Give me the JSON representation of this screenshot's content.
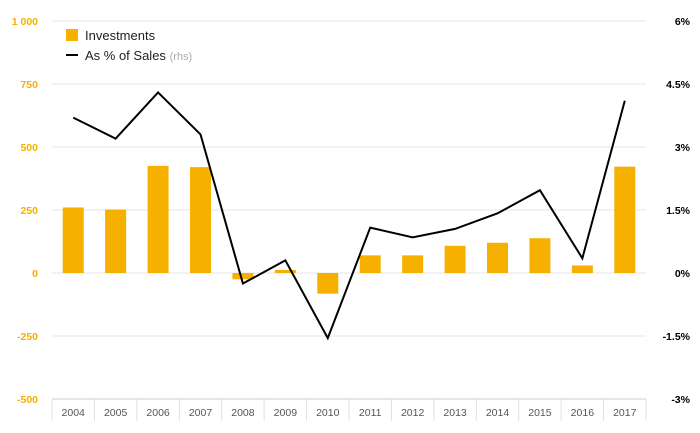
{
  "chart_data": {
    "type": "bar",
    "categories": [
      "2004",
      "2005",
      "2006",
      "2007",
      "2008",
      "2009",
      "2010",
      "2011",
      "2012",
      "2013",
      "2014",
      "2015",
      "2016",
      "2017"
    ],
    "series": [
      {
        "name": "Investments",
        "type": "bar",
        "axis": "left",
        "color": "#f5b000",
        "values": [
          260,
          252,
          425,
          420,
          -25,
          12,
          -82,
          70,
          70,
          108,
          120,
          138,
          30,
          422
        ]
      },
      {
        "name": "As % of Sales",
        "name_suffix": "(rhs)",
        "type": "line",
        "axis": "right",
        "color": "#000000",
        "values": [
          3.7,
          3.2,
          4.3,
          3.3,
          -0.25,
          0.3,
          -1.55,
          1.08,
          0.85,
          1.05,
          1.42,
          1.97,
          0.35,
          4.1
        ]
      }
    ],
    "y_left": {
      "range": [
        -500,
        1000
      ],
      "ticks": [
        -500,
        -250,
        0,
        250,
        500,
        750,
        1000
      ],
      "tick_labels": [
        "-500",
        "-250",
        "0",
        "250",
        "500",
        "750",
        "1 000"
      ],
      "color": "#f5b000"
    },
    "y_right": {
      "range": [
        -3,
        6
      ],
      "ticks": [
        -3,
        -1.5,
        0,
        1.5,
        3,
        4.5,
        6
      ],
      "tick_labels": [
        "-3%",
        "-1.5%",
        "0%",
        "1.5%",
        "3%",
        "4.5%",
        "6%"
      ],
      "color": "#000000"
    },
    "grid": true,
    "legend_position": "top-left"
  }
}
